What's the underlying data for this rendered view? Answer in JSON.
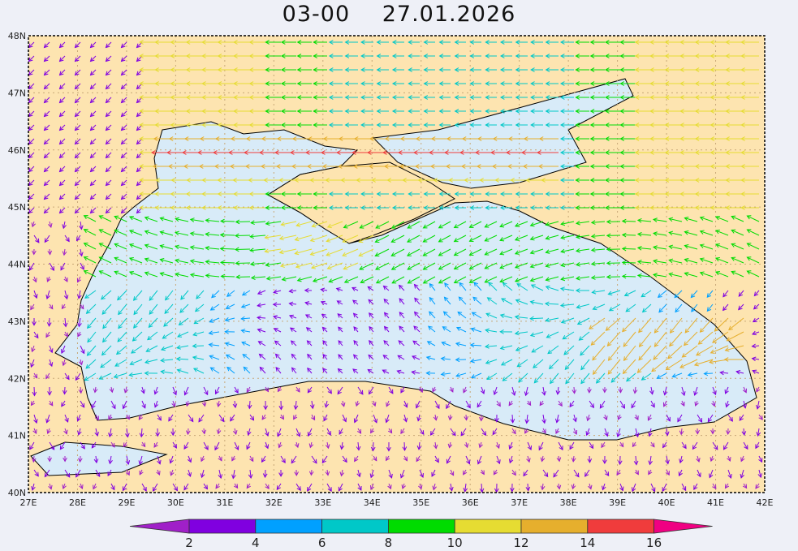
{
  "title": {
    "time": "03-00",
    "date": "27.01.2026"
  },
  "axes": {
    "lat_labels": [
      "48N",
      "47N",
      "46N",
      "45N",
      "44N",
      "43N",
      "42N",
      "41N",
      "40N"
    ],
    "lon_labels": [
      "27E",
      "28E",
      "29E",
      "30E",
      "31E",
      "32E",
      "33E",
      "34E",
      "35E",
      "36E",
      "37E",
      "38E",
      "39E",
      "40E",
      "41E",
      "42E"
    ],
    "lat_range": [
      40,
      48
    ],
    "lon_range": [
      27,
      42
    ],
    "grid": true
  },
  "colorbar": {
    "labels": [
      "2",
      "4",
      "6",
      "8",
      "10",
      "12",
      "14",
      "16"
    ],
    "colors": [
      "#a020c8",
      "#8000e0",
      "#00a0ff",
      "#00c8c8",
      "#00dc00",
      "#e6dc32",
      "#e6af2d",
      "#f03c3c",
      "#f00082"
    ]
  },
  "colors": {
    "land": "#fde4b0",
    "sea": "#d8ebf8",
    "background": "#eef0f7"
  }
}
